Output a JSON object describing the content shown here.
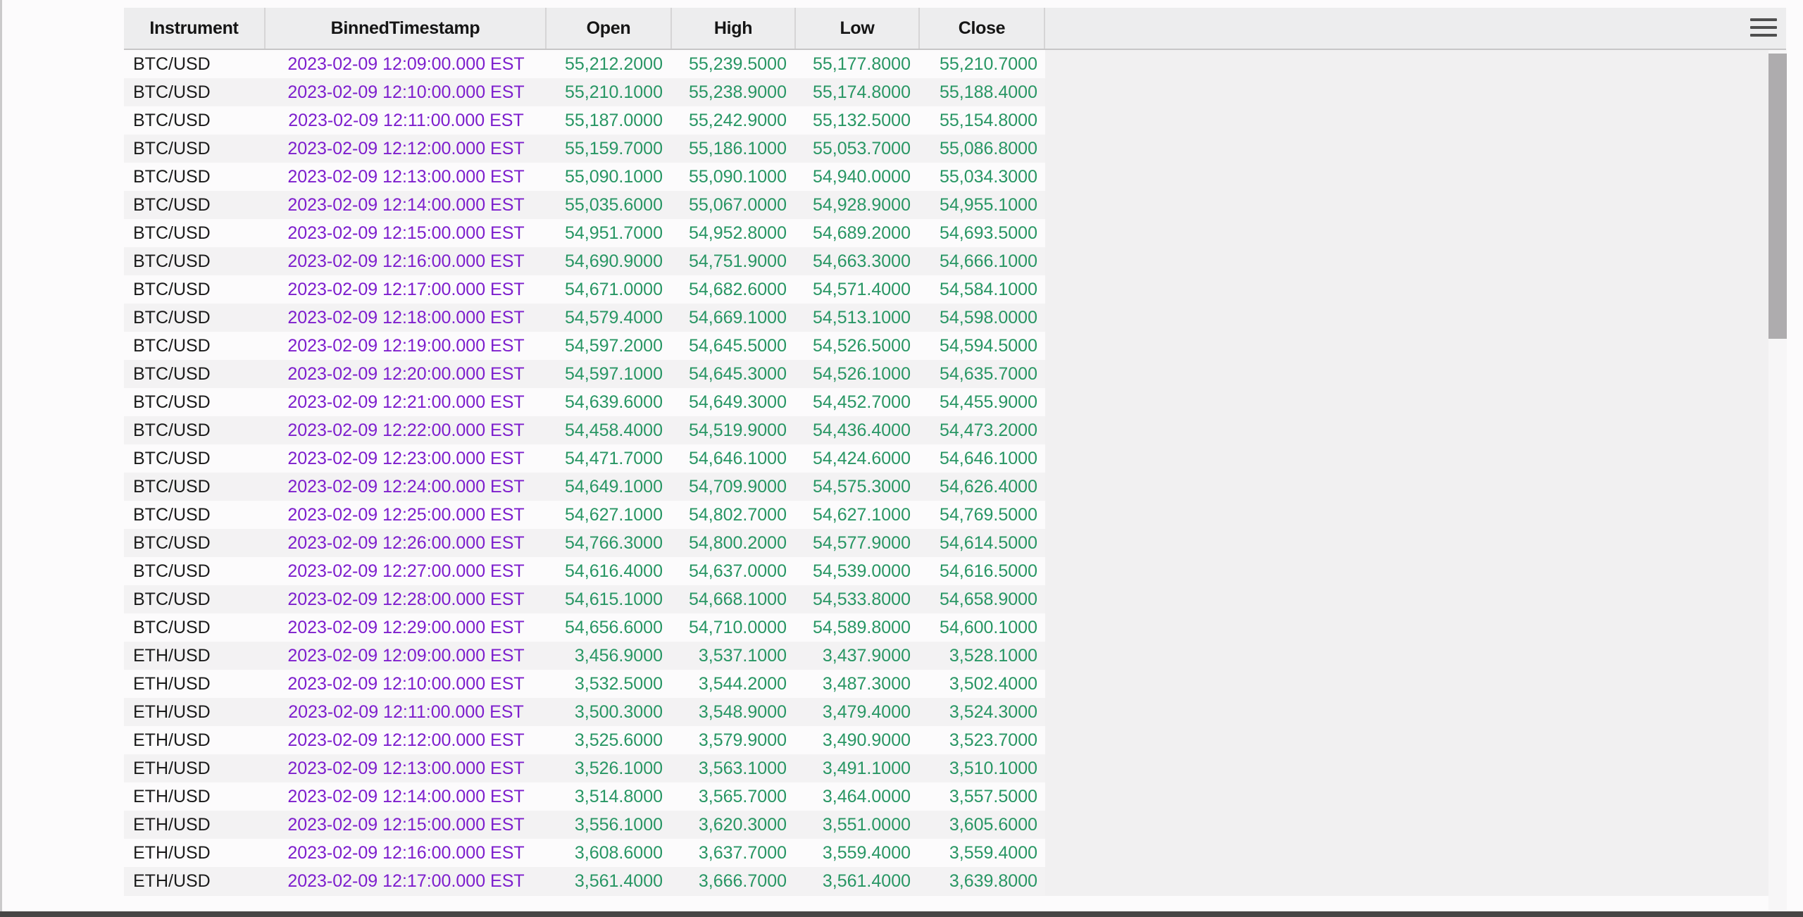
{
  "header": {
    "columns": [
      "Instrument",
      "BinnedTimestamp",
      "Open",
      "High",
      "Low",
      "Close"
    ]
  },
  "menu": {
    "icon": "hamburger-menu-icon"
  },
  "colors": {
    "timestamp_text": "#7d1ecd",
    "number_text": "#289664",
    "instrument_text": "#1b1b1b",
    "header_bg": "#ededee",
    "row_stripe_bg": "#f3f2f3",
    "row_plain_bg": "#fcfbfc",
    "empty_area_bg": "#f1f0f1",
    "scrollbar_thumb": "#aeacae"
  },
  "table": {
    "rows": [
      {
        "instrument": "BTC/USD",
        "timestamp": "2023-02-09 12:09:00.000 EST",
        "open": "55,212.2000",
        "high": "55,239.5000",
        "low": "55,177.8000",
        "close": "55,210.7000"
      },
      {
        "instrument": "BTC/USD",
        "timestamp": "2023-02-09 12:10:00.000 EST",
        "open": "55,210.1000",
        "high": "55,238.9000",
        "low": "55,174.8000",
        "close": "55,188.4000"
      },
      {
        "instrument": "BTC/USD",
        "timestamp": "2023-02-09 12:11:00.000 EST",
        "open": "55,187.0000",
        "high": "55,242.9000",
        "low": "55,132.5000",
        "close": "55,154.8000"
      },
      {
        "instrument": "BTC/USD",
        "timestamp": "2023-02-09 12:12:00.000 EST",
        "open": "55,159.7000",
        "high": "55,186.1000",
        "low": "55,053.7000",
        "close": "55,086.8000"
      },
      {
        "instrument": "BTC/USD",
        "timestamp": "2023-02-09 12:13:00.000 EST",
        "open": "55,090.1000",
        "high": "55,090.1000",
        "low": "54,940.0000",
        "close": "55,034.3000"
      },
      {
        "instrument": "BTC/USD",
        "timestamp": "2023-02-09 12:14:00.000 EST",
        "open": "55,035.6000",
        "high": "55,067.0000",
        "low": "54,928.9000",
        "close": "54,955.1000"
      },
      {
        "instrument": "BTC/USD",
        "timestamp": "2023-02-09 12:15:00.000 EST",
        "open": "54,951.7000",
        "high": "54,952.8000",
        "low": "54,689.2000",
        "close": "54,693.5000"
      },
      {
        "instrument": "BTC/USD",
        "timestamp": "2023-02-09 12:16:00.000 EST",
        "open": "54,690.9000",
        "high": "54,751.9000",
        "low": "54,663.3000",
        "close": "54,666.1000"
      },
      {
        "instrument": "BTC/USD",
        "timestamp": "2023-02-09 12:17:00.000 EST",
        "open": "54,671.0000",
        "high": "54,682.6000",
        "low": "54,571.4000",
        "close": "54,584.1000"
      },
      {
        "instrument": "BTC/USD",
        "timestamp": "2023-02-09 12:18:00.000 EST",
        "open": "54,579.4000",
        "high": "54,669.1000",
        "low": "54,513.1000",
        "close": "54,598.0000"
      },
      {
        "instrument": "BTC/USD",
        "timestamp": "2023-02-09 12:19:00.000 EST",
        "open": "54,597.2000",
        "high": "54,645.5000",
        "low": "54,526.5000",
        "close": "54,594.5000"
      },
      {
        "instrument": "BTC/USD",
        "timestamp": "2023-02-09 12:20:00.000 EST",
        "open": "54,597.1000",
        "high": "54,645.3000",
        "low": "54,526.1000",
        "close": "54,635.7000"
      },
      {
        "instrument": "BTC/USD",
        "timestamp": "2023-02-09 12:21:00.000 EST",
        "open": "54,639.6000",
        "high": "54,649.3000",
        "low": "54,452.7000",
        "close": "54,455.9000"
      },
      {
        "instrument": "BTC/USD",
        "timestamp": "2023-02-09 12:22:00.000 EST",
        "open": "54,458.4000",
        "high": "54,519.9000",
        "low": "54,436.4000",
        "close": "54,473.2000"
      },
      {
        "instrument": "BTC/USD",
        "timestamp": "2023-02-09 12:23:00.000 EST",
        "open": "54,471.7000",
        "high": "54,646.1000",
        "low": "54,424.6000",
        "close": "54,646.1000"
      },
      {
        "instrument": "BTC/USD",
        "timestamp": "2023-02-09 12:24:00.000 EST",
        "open": "54,649.1000",
        "high": "54,709.9000",
        "low": "54,575.3000",
        "close": "54,626.4000"
      },
      {
        "instrument": "BTC/USD",
        "timestamp": "2023-02-09 12:25:00.000 EST",
        "open": "54,627.1000",
        "high": "54,802.7000",
        "low": "54,627.1000",
        "close": "54,769.5000"
      },
      {
        "instrument": "BTC/USD",
        "timestamp": "2023-02-09 12:26:00.000 EST",
        "open": "54,766.3000",
        "high": "54,800.2000",
        "low": "54,577.9000",
        "close": "54,614.5000"
      },
      {
        "instrument": "BTC/USD",
        "timestamp": "2023-02-09 12:27:00.000 EST",
        "open": "54,616.4000",
        "high": "54,637.0000",
        "low": "54,539.0000",
        "close": "54,616.5000"
      },
      {
        "instrument": "BTC/USD",
        "timestamp": "2023-02-09 12:28:00.000 EST",
        "open": "54,615.1000",
        "high": "54,668.1000",
        "low": "54,533.8000",
        "close": "54,658.9000"
      },
      {
        "instrument": "BTC/USD",
        "timestamp": "2023-02-09 12:29:00.000 EST",
        "open": "54,656.6000",
        "high": "54,710.0000",
        "low": "54,589.8000",
        "close": "54,600.1000"
      },
      {
        "instrument": "ETH/USD",
        "timestamp": "2023-02-09 12:09:00.000 EST",
        "open": "3,456.9000",
        "high": "3,537.1000",
        "low": "3,437.9000",
        "close": "3,528.1000"
      },
      {
        "instrument": "ETH/USD",
        "timestamp": "2023-02-09 12:10:00.000 EST",
        "open": "3,532.5000",
        "high": "3,544.2000",
        "low": "3,487.3000",
        "close": "3,502.4000"
      },
      {
        "instrument": "ETH/USD",
        "timestamp": "2023-02-09 12:11:00.000 EST",
        "open": "3,500.3000",
        "high": "3,548.9000",
        "low": "3,479.4000",
        "close": "3,524.3000"
      },
      {
        "instrument": "ETH/USD",
        "timestamp": "2023-02-09 12:12:00.000 EST",
        "open": "3,525.6000",
        "high": "3,579.9000",
        "low": "3,490.9000",
        "close": "3,523.7000"
      },
      {
        "instrument": "ETH/USD",
        "timestamp": "2023-02-09 12:13:00.000 EST",
        "open": "3,526.1000",
        "high": "3,563.1000",
        "low": "3,491.1000",
        "close": "3,510.1000"
      },
      {
        "instrument": "ETH/USD",
        "timestamp": "2023-02-09 12:14:00.000 EST",
        "open": "3,514.8000",
        "high": "3,565.7000",
        "low": "3,464.0000",
        "close": "3,557.5000"
      },
      {
        "instrument": "ETH/USD",
        "timestamp": "2023-02-09 12:15:00.000 EST",
        "open": "3,556.1000",
        "high": "3,620.3000",
        "low": "3,551.0000",
        "close": "3,605.6000"
      },
      {
        "instrument": "ETH/USD",
        "timestamp": "2023-02-09 12:16:00.000 EST",
        "open": "3,608.6000",
        "high": "3,637.7000",
        "low": "3,559.4000",
        "close": "3,559.4000"
      },
      {
        "instrument": "ETH/USD",
        "timestamp": "2023-02-09 12:17:00.000 EST",
        "open": "3,561.4000",
        "high": "3,666.7000",
        "low": "3,561.4000",
        "close": "3,639.8000"
      }
    ]
  }
}
